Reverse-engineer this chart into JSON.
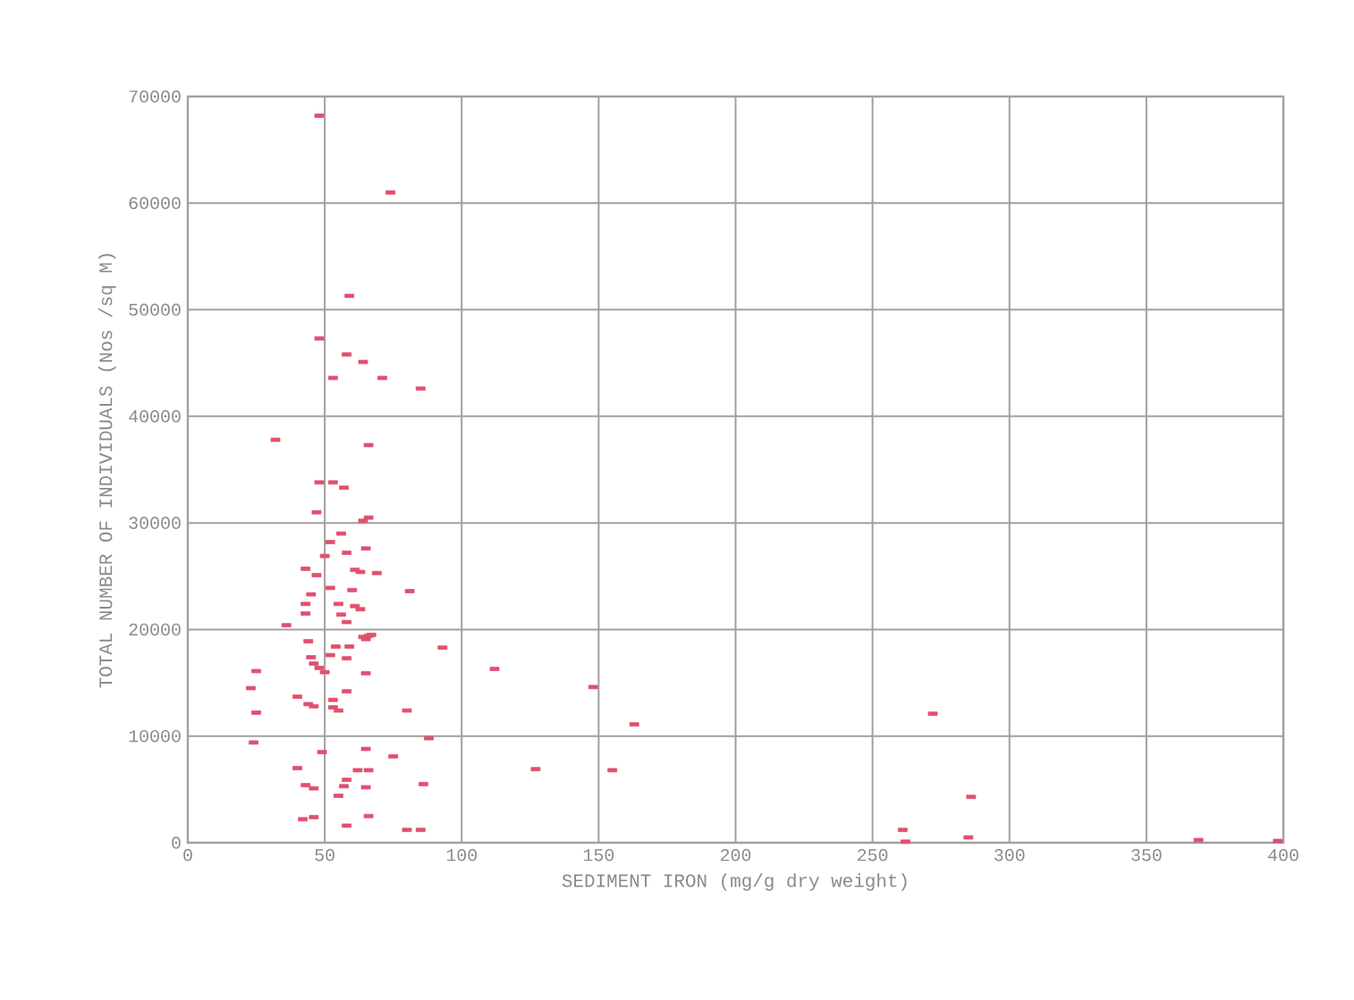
{
  "chart_data": {
    "type": "scatter",
    "xlabel": "SEDIMENT IRON (mg/g dry weight)",
    "ylabel": "TOTAL NUMBER OF INDIVIDUALS (Nos /sq M)",
    "xlim": [
      0,
      400
    ],
    "ylim": [
      0,
      70000
    ],
    "xticks": [
      0,
      50,
      100,
      150,
      200,
      250,
      300,
      350,
      400
    ],
    "yticks": [
      0,
      10000,
      20000,
      30000,
      40000,
      50000,
      60000,
      70000
    ],
    "grid": true,
    "marker": "square",
    "series": [
      {
        "color": "#e0506e",
        "x": [
          48,
          74,
          59,
          48,
          58,
          64,
          53,
          71,
          85,
          32,
          66,
          48,
          53,
          57,
          47,
          66,
          64,
          56,
          52,
          50,
          43,
          58,
          65,
          61,
          63,
          69,
          47,
          45,
          60,
          81,
          52,
          43,
          43,
          36,
          55,
          61,
          63,
          56,
          58,
          44,
          54,
          59,
          64,
          65,
          66,
          67,
          93,
          45,
          46,
          48,
          50,
          58,
          52,
          65,
          25,
          112,
          23,
          58,
          40,
          53,
          44,
          46,
          53,
          55,
          25,
          80,
          148,
          163,
          272,
          24,
          88,
          65,
          49,
          75,
          40,
          62,
          66,
          127,
          155,
          43,
          46,
          57,
          65,
          58,
          55,
          86,
          286,
          58,
          66,
          46,
          42,
          80,
          85,
          261,
          262,
          285,
          369,
          398
        ],
        "values": [
          68200,
          61000,
          51300,
          47300,
          45800,
          45100,
          43600,
          43600,
          42600,
          37800,
          37300,
          33800,
          33800,
          33300,
          31000,
          30500,
          30200,
          29000,
          28200,
          26900,
          25700,
          27200,
          27600,
          25600,
          25400,
          25300,
          25100,
          23300,
          23700,
          23600,
          23900,
          22400,
          21500,
          20400,
          22400,
          22200,
          21900,
          21400,
          20700,
          18900,
          18400,
          18400,
          19300,
          19100,
          19400,
          19500,
          18300,
          17400,
          16800,
          16400,
          16000,
          17300,
          17600,
          15900,
          16100,
          16300,
          14500,
          14200,
          13700,
          13400,
          13000,
          12800,
          12700,
          12400,
          12200,
          12400,
          14600,
          11100,
          12100,
          9400,
          9800,
          8800,
          8500,
          8100,
          7000,
          6800,
          6800,
          6900,
          6800,
          5400,
          5100,
          5300,
          5200,
          5900,
          4400,
          5500,
          4300,
          1600,
          2500,
          2400,
          2200,
          1200,
          1200,
          1200,
          100,
          500,
          250,
          170
        ]
      }
    ]
  }
}
